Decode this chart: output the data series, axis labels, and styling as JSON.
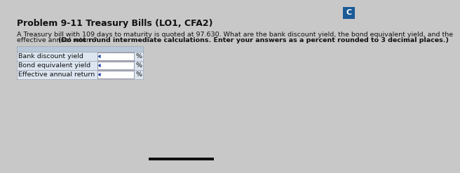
{
  "title": "Problem 9-11 Treasury Bills (LO1, CFA2)",
  "body_text_line1": "A Treasury bill with 109 days to maturity is quoted at 97.630. What are the bank discount yield, the bond equivalent yield, and the",
  "body_text_line2_normal": "effective annual return? ",
  "body_text_line2_bold": "(Do not round intermediate calculations. Enter your answers as a percent rounded to 3 decimal places.)",
  "table_rows": [
    "Bank discount yield",
    "Bond equivalent yield",
    "Effective annual return"
  ],
  "percent_label": "%",
  "bg_color": "#c8c8c8",
  "table_header_color": "#b8c8d8",
  "table_row_color": "#dce6f0",
  "table_border_color": "#555577",
  "input_box_color": "#ffffff",
  "corner_label": "C",
  "corner_bg": "#1a5a96",
  "title_color": "#111111",
  "body_color": "#111111",
  "bottom_bar_color": "#111111",
  "table_dotted_border": "#888899"
}
